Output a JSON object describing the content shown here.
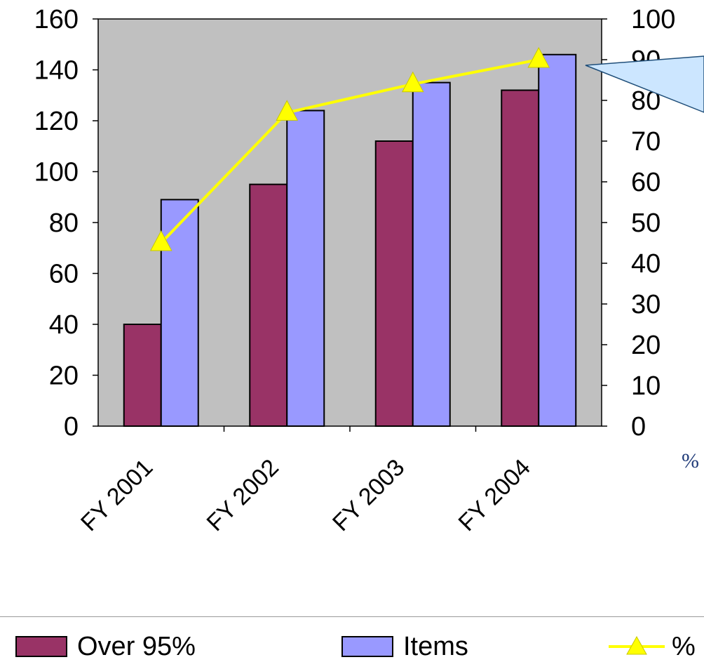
{
  "chart_data": {
    "type": "bar",
    "categories": [
      "FY 2001",
      "FY 2002",
      "FY 2003",
      "FY 2004"
    ],
    "series": [
      {
        "name": "Over 95%",
        "kind": "bar",
        "axis": "left",
        "color": "#993366",
        "values": [
          40,
          95,
          112,
          132
        ]
      },
      {
        "name": "Items",
        "kind": "bar",
        "axis": "left",
        "color": "#9999ff",
        "values": [
          89,
          124,
          135,
          146
        ]
      },
      {
        "name": "%",
        "kind": "line",
        "axis": "right",
        "color": "#ffff00",
        "values": [
          45,
          77,
          84,
          90
        ]
      }
    ],
    "y_left": {
      "min": 0,
      "max": 160,
      "ticks": [
        "0",
        "20",
        "40",
        "60",
        "80",
        "100",
        "120",
        "140",
        "160"
      ]
    },
    "y_right": {
      "min": 0,
      "max": 100,
      "ticks": [
        "0",
        "10",
        "20",
        "30",
        "40",
        "50",
        "60",
        "70",
        "80",
        "90",
        "100"
      ]
    },
    "plot_background": "#c0c0c0",
    "grid": false,
    "legend_position": "bottom",
    "callout_color": "#cce6ff",
    "annotations": [
      "%"
    ]
  },
  "legend": {
    "items": [
      {
        "label": "Over 95%"
      },
      {
        "label": "Items"
      },
      {
        "label": "%"
      }
    ]
  }
}
